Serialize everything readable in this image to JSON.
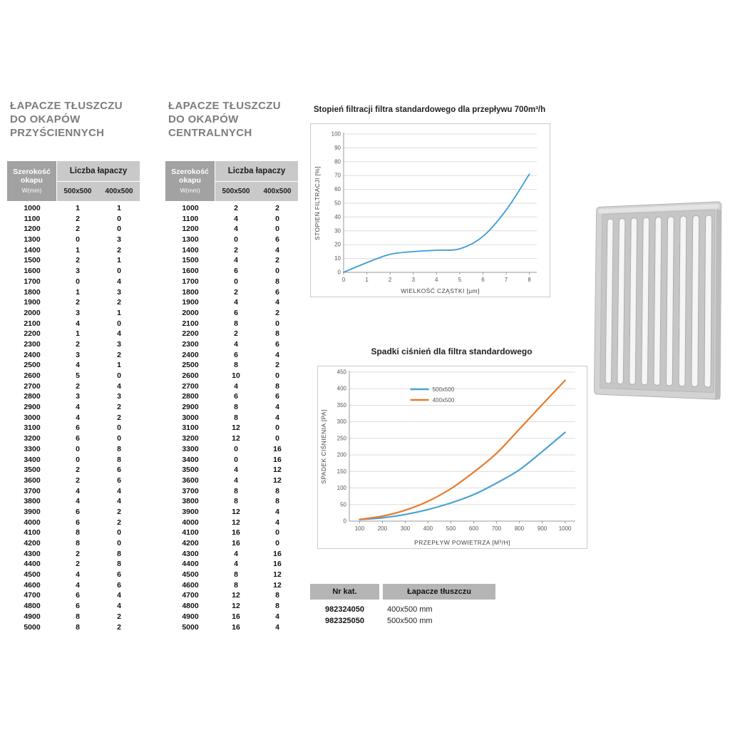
{
  "headings": [
    {
      "lines": [
        "ŁAPACZE TŁUSZCZU",
        "DO OKAPÓW",
        "PRZYŚCIENNYCH"
      ]
    },
    {
      "lines": [
        "ŁAPACZE TŁUSZCZU",
        "DO OKAPÓW",
        "CENTRALNYCH"
      ]
    }
  ],
  "tables": [
    {
      "width_header": [
        "Szerokość",
        "okapu"
      ],
      "width_unit": "W(mm)",
      "count_header": "Liczba łapaczy",
      "size_columns": [
        "500x500",
        "400x500"
      ],
      "rows": [
        [
          1000,
          1,
          1
        ],
        [
          1100,
          2,
          0
        ],
        [
          1200,
          2,
          0
        ],
        [
          1300,
          0,
          3
        ],
        [
          1400,
          1,
          2
        ],
        [
          1500,
          2,
          1
        ],
        [
          1600,
          3,
          0
        ],
        [
          1700,
          0,
          4
        ],
        [
          1800,
          1,
          3
        ],
        [
          1900,
          2,
          2
        ],
        [
          2000,
          3,
          1
        ],
        [
          2100,
          4,
          0
        ],
        [
          2200,
          1,
          4
        ],
        [
          2300,
          2,
          3
        ],
        [
          2400,
          3,
          2
        ],
        [
          2500,
          4,
          1
        ],
        [
          2600,
          5,
          0
        ],
        [
          2700,
          2,
          4
        ],
        [
          2800,
          3,
          3
        ],
        [
          2900,
          4,
          2
        ],
        [
          3000,
          4,
          2
        ],
        [
          3100,
          6,
          0
        ],
        [
          3200,
          6,
          0
        ],
        [
          3300,
          0,
          8
        ],
        [
          3400,
          0,
          8
        ],
        [
          3500,
          2,
          6
        ],
        [
          3600,
          2,
          6
        ],
        [
          3700,
          4,
          4
        ],
        [
          3800,
          4,
          4
        ],
        [
          3900,
          6,
          2
        ],
        [
          4000,
          6,
          2
        ],
        [
          4100,
          8,
          0
        ],
        [
          4200,
          8,
          0
        ],
        [
          4300,
          2,
          8
        ],
        [
          4400,
          2,
          8
        ],
        [
          4500,
          4,
          6
        ],
        [
          4600,
          4,
          6
        ],
        [
          4700,
          6,
          4
        ],
        [
          4800,
          6,
          4
        ],
        [
          4900,
          8,
          2
        ],
        [
          5000,
          8,
          2
        ]
      ]
    },
    {
      "width_header": [
        "Szerokość",
        "okapu"
      ],
      "width_unit": "W(mm)",
      "count_header": "Liczba łapaczy",
      "size_columns": [
        "500x500",
        "400x500"
      ],
      "rows": [
        [
          1000,
          2,
          2
        ],
        [
          1100,
          4,
          0
        ],
        [
          1200,
          4,
          0
        ],
        [
          1300,
          0,
          6
        ],
        [
          1400,
          2,
          4
        ],
        [
          1500,
          4,
          2
        ],
        [
          1600,
          6,
          0
        ],
        [
          1700,
          0,
          8
        ],
        [
          1800,
          2,
          6
        ],
        [
          1900,
          4,
          4
        ],
        [
          2000,
          6,
          2
        ],
        [
          2100,
          8,
          0
        ],
        [
          2200,
          2,
          8
        ],
        [
          2300,
          4,
          6
        ],
        [
          2400,
          6,
          4
        ],
        [
          2500,
          8,
          2
        ],
        [
          2600,
          10,
          0
        ],
        [
          2700,
          4,
          8
        ],
        [
          2800,
          6,
          6
        ],
        [
          2900,
          8,
          4
        ],
        [
          3000,
          8,
          4
        ],
        [
          3100,
          12,
          0
        ],
        [
          3200,
          12,
          0
        ],
        [
          3300,
          0,
          16
        ],
        [
          3400,
          0,
          16
        ],
        [
          3500,
          4,
          12
        ],
        [
          3600,
          4,
          12
        ],
        [
          3700,
          8,
          8
        ],
        [
          3800,
          8,
          8
        ],
        [
          3900,
          12,
          4
        ],
        [
          4000,
          12,
          4
        ],
        [
          4100,
          16,
          0
        ],
        [
          4200,
          16,
          0
        ],
        [
          4300,
          4,
          16
        ],
        [
          4400,
          4,
          16
        ],
        [
          4500,
          8,
          12
        ],
        [
          4600,
          8,
          12
        ],
        [
          4700,
          12,
          8
        ],
        [
          4800,
          12,
          8
        ],
        [
          4900,
          16,
          4
        ],
        [
          5000,
          16,
          4
        ]
      ]
    }
  ],
  "chart_data": [
    {
      "type": "line",
      "title": "Stopień filtracji filtra standardowego dla przepływu 700m³/h",
      "xlabel": "WIELKOŚĆ CZĄSTKI [μm]",
      "ylabel": "STOPIEŃ FILTRACJI [%]",
      "xlim": [
        0,
        8
      ],
      "ylim": [
        0,
        100
      ],
      "xticks": [
        0,
        1,
        2,
        3,
        4,
        5,
        6,
        7,
        8
      ],
      "yticks": [
        0,
        10,
        20,
        30,
        40,
        50,
        60,
        70,
        80,
        90,
        100
      ],
      "grid": true,
      "legend": false,
      "series": [
        {
          "name": "stopień filtracji",
          "color": "#3C9BD5",
          "x": [
            0,
            1,
            2,
            3,
            4,
            5,
            6,
            7,
            8
          ],
          "y": [
            0,
            7,
            13,
            15,
            16,
            17,
            26,
            45,
            71
          ]
        }
      ]
    },
    {
      "type": "line",
      "title": "Spadki ciśnień dla filtra standardowego",
      "xlabel": "PRZEPŁYW POWIETRZA [M³/H]",
      "ylabel": "SPADEK CIŚNIENIA [PA]",
      "xlim": [
        100,
        1000
      ],
      "ylim": [
        0,
        450
      ],
      "xticks": [
        100,
        200,
        300,
        400,
        500,
        600,
        700,
        800,
        900,
        1000
      ],
      "yticks": [
        0,
        50,
        100,
        150,
        200,
        250,
        300,
        350,
        400,
        450
      ],
      "grid": true,
      "legend": "top-center",
      "series": [
        {
          "name": "500x500",
          "color": "#4DA3D2",
          "x": [
            100,
            200,
            300,
            400,
            500,
            600,
            700,
            800,
            900,
            1000
          ],
          "y": [
            5,
            10,
            20,
            35,
            55,
            80,
            115,
            155,
            210,
            268
          ]
        },
        {
          "name": "400x500",
          "color": "#E87A2C",
          "x": [
            100,
            200,
            300,
            400,
            500,
            600,
            700,
            800,
            900,
            1000
          ],
          "y": [
            5,
            15,
            33,
            60,
            98,
            148,
            205,
            278,
            352,
            425
          ]
        }
      ]
    }
  ],
  "catalog_table": {
    "headers": [
      "Nr kat.",
      "Łapacze tłuszczu"
    ],
    "rows": [
      [
        "982324050",
        "400x500 mm"
      ],
      [
        "982325050",
        "500x500 mm"
      ]
    ]
  }
}
